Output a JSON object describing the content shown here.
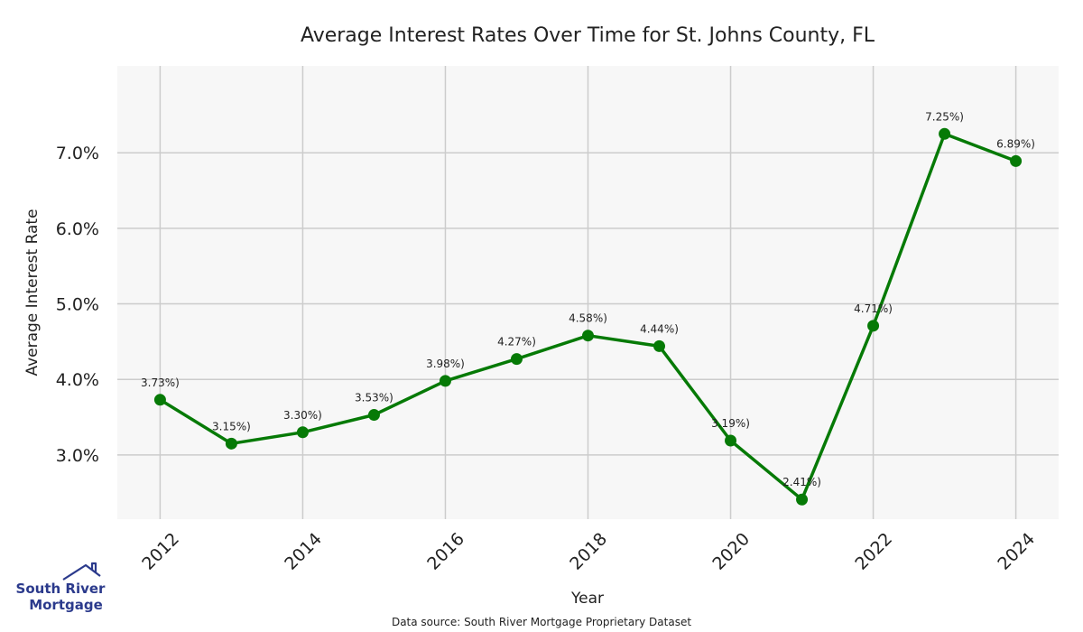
{
  "chart_data": {
    "type": "line",
    "title": "Average Interest Rates Over Time for St. Johns County, FL",
    "xlabel": "Year",
    "ylabel": "Average Interest Rate",
    "x": [
      2012,
      2013,
      2014,
      2015,
      2016,
      2017,
      2018,
      2019,
      2020,
      2021,
      2022,
      2023,
      2024
    ],
    "series": [
      {
        "name": "Average Interest Rate",
        "values": [
          3.73,
          3.15,
          3.3,
          3.53,
          3.98,
          4.27,
          4.58,
          4.44,
          3.19,
          2.41,
          4.71,
          7.25,
          6.89
        ],
        "labels": [
          "3.73%)",
          "3.15%)",
          "3.30%)",
          "3.53%)",
          "3.98%)",
          "4.27%)",
          "4.58%)",
          "4.44%)",
          "3.19%)",
          "2.41%)",
          "4.71%)",
          "7.25%)",
          "6.89%)"
        ]
      }
    ],
    "xticks": [
      2012,
      2014,
      2016,
      2018,
      2020,
      2022,
      2024
    ],
    "xtick_labels": [
      "2012",
      "2014",
      "2016",
      "2018",
      "2020",
      "2022",
      "2024"
    ],
    "yticks": [
      3.0,
      4.0,
      5.0,
      6.0,
      7.0
    ],
    "ytick_labels": [
      "3.0%",
      "4.0%",
      "5.0%",
      "6.0%",
      "7.0%"
    ],
    "xlim": [
      2011.4,
      2024.6
    ],
    "ylim": [
      2.15,
      8.15
    ],
    "grid": true,
    "line_color": "#067a06",
    "background": "#f7f7f7"
  },
  "footer": {
    "source": "Data source: South River Mortgage Proprietary Dataset"
  },
  "logo": {
    "line1": "South River",
    "line2": "Mortgage",
    "color": "#2b3a8c"
  }
}
